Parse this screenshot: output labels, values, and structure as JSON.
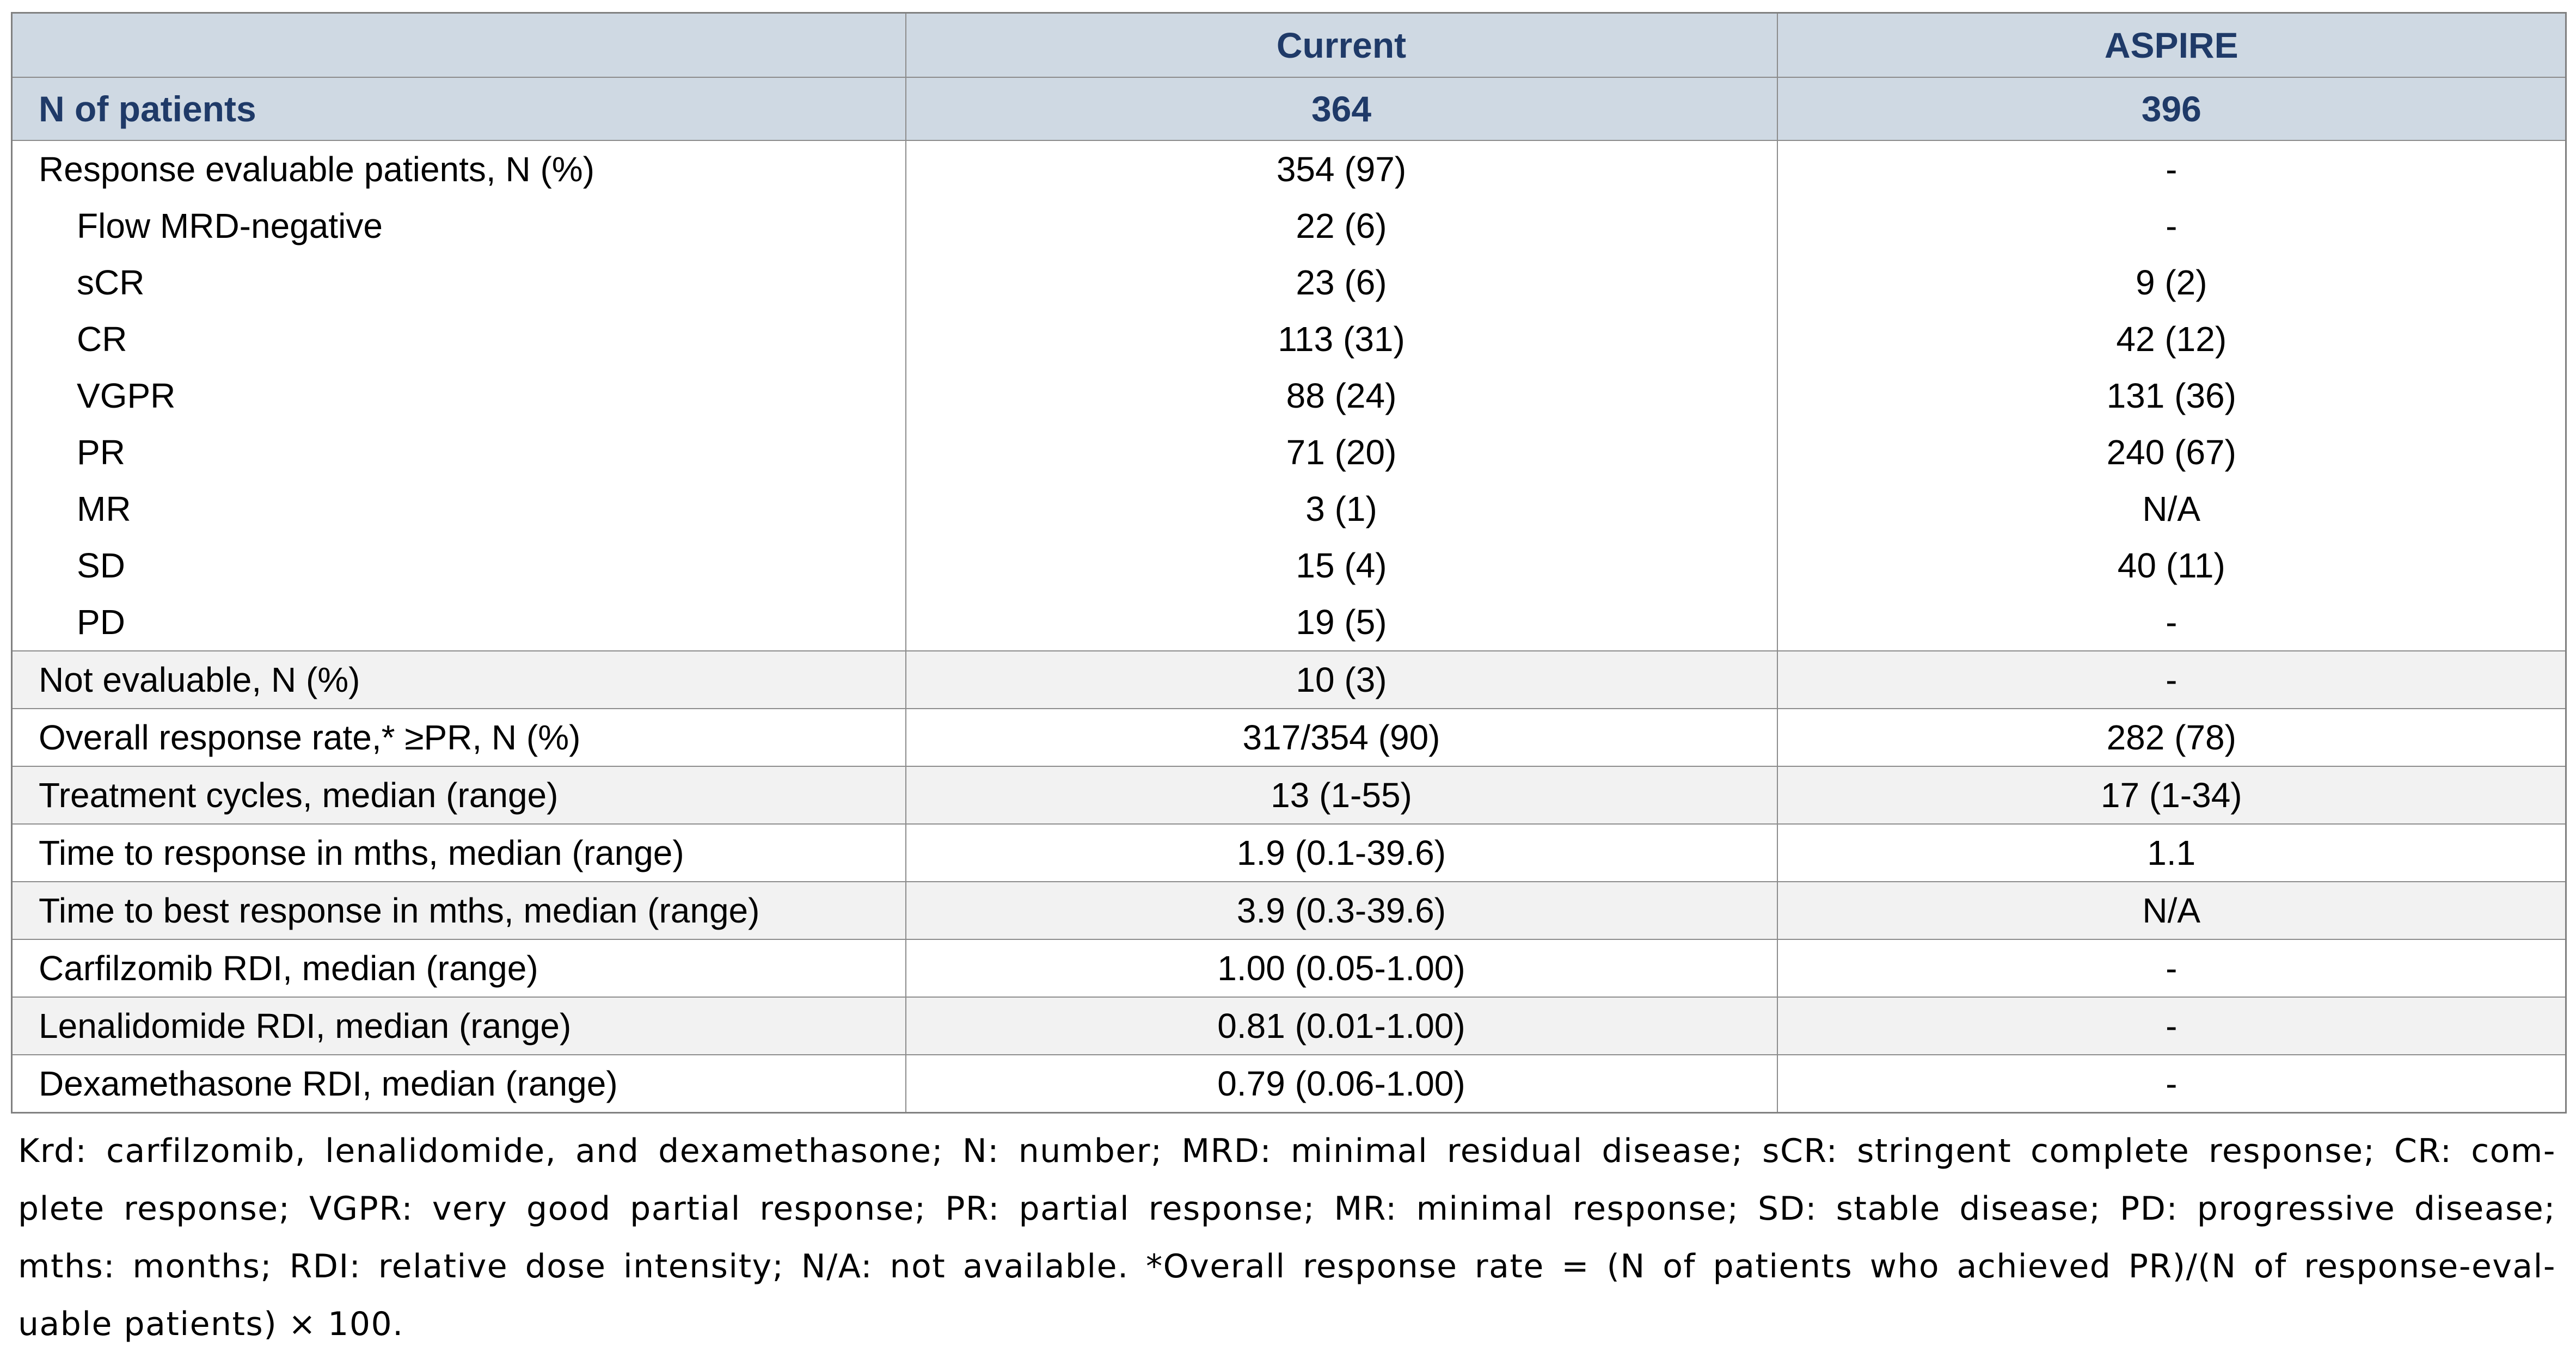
{
  "colors": {
    "header_bg": "#cfd9e3",
    "header_text": "#1f3a68",
    "row_shade": "#f2f2f2",
    "border": "#8c8c8c",
    "body_text": "#000000"
  },
  "table": {
    "columns": [
      "Current",
      "ASPIRE"
    ],
    "n_of_patients": {
      "label": "N of patients",
      "current": "364",
      "aspire": "396"
    },
    "response_block": [
      {
        "label": "Response evaluable patients, N (%)",
        "current": "354 (97)",
        "aspire": "-"
      },
      {
        "label": "Flow MRD-negative",
        "current": "22 (6)",
        "aspire": "-"
      },
      {
        "label": "sCR",
        "current": "23 (6)",
        "aspire": "9 (2)"
      },
      {
        "label": "CR",
        "current": "113 (31)",
        "aspire": "42 (12)"
      },
      {
        "label": "VGPR",
        "current": "88 (24)",
        "aspire": "131 (36)"
      },
      {
        "label": "PR",
        "current": "71 (20)",
        "aspire": "240 (67)"
      },
      {
        "label": "MR",
        "current": "3 (1)",
        "aspire": "N/A"
      },
      {
        "label": "SD",
        "current": "15 (4)",
        "aspire": "40 (11)"
      },
      {
        "label": "PD",
        "current": "19 (5)",
        "aspire": "-"
      }
    ],
    "rows": [
      {
        "label": "Not evaluable, N (%)",
        "current": "10 (3)",
        "aspire": "-"
      },
      {
        "label": "Overall response rate,* ≥PR, N (%)",
        "current": "317/354 (90)",
        "aspire": "282 (78)"
      },
      {
        "label": "Treatment cycles, median (range)",
        "current": "13 (1-55)",
        "aspire": "17 (1-34)"
      },
      {
        "label": "Time to response in mths, median (range)",
        "current": "1.9 (0.1-39.6)",
        "aspire": "1.1"
      },
      {
        "label": "Time to best response in mths, median (range)",
        "current": "3.9 (0.3-39.6)",
        "aspire": "N/A"
      },
      {
        "label": "Carfilzomib RDI, median (range)",
        "current": "1.00 (0.05-1.00)",
        "aspire": "-"
      },
      {
        "label": "Lenalidomide RDI, median (range)",
        "current": "0.81 (0.01-1.00)",
        "aspire": "-"
      },
      {
        "label": "Dexamethasone RDI, median (range)",
        "current": "0.79 (0.06-1.00)",
        "aspire": "-"
      }
    ]
  },
  "footnote": {
    "lines": [
      "Krd: carfilzomib, lenalidomide, and dexamethasone; N: number; MRD: minimal residual disease; sCR: stringent complete response; CR: com-",
      "plete response; VGPR: very good partial response; PR: partial response; MR: minimal response; SD: stable disease; PD: progressive disease;",
      "mths: months; RDI: relative dose intensity; N/A: not available. *Overall response rate = (N of patients who achieved PR)/(N of response-eval-",
      "uable patients) × 100."
    ]
  }
}
